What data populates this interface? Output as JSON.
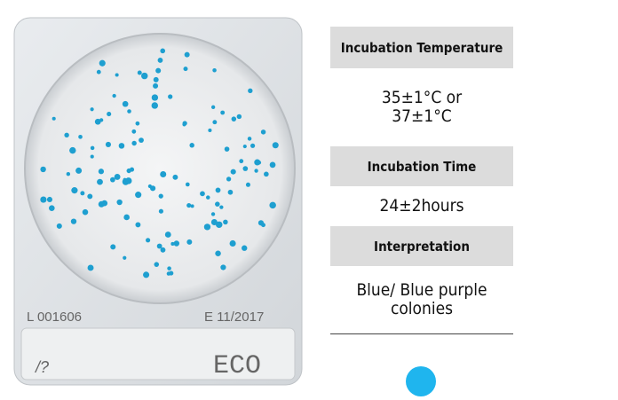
{
  "photo": {
    "lot": "L 001606",
    "expiry": "E 11/2017",
    "mark": "/?",
    "label": "ECO"
  },
  "table": {
    "rows": [
      {
        "header": "Incubation Temperature",
        "value": [
          "35±1°C or",
          "37±1°C"
        ]
      },
      {
        "header": "Incubation Time",
        "value": [
          "24±2hours"
        ]
      },
      {
        "header": "Interpretation",
        "value": [
          "Blue/ Blue purple",
          "colonies"
        ]
      }
    ]
  }
}
